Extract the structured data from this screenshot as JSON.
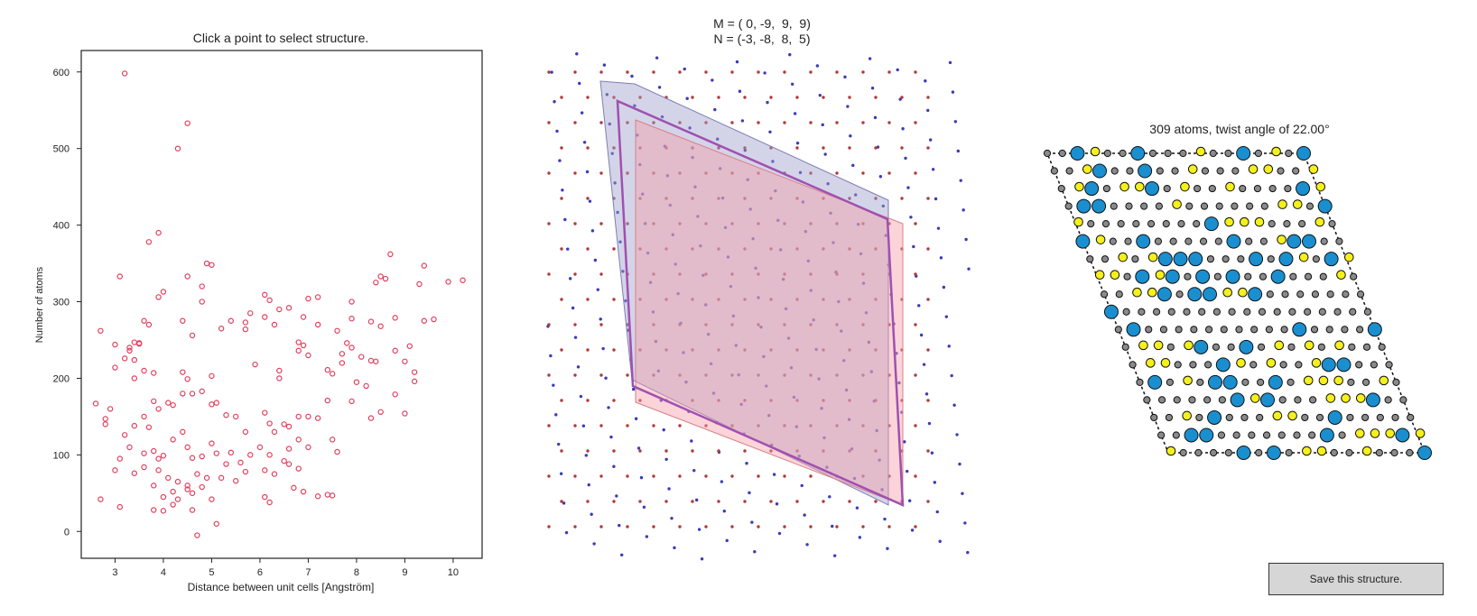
{
  "scatter": {
    "title": "Click a point to select structure.",
    "xlabel": "Distance between unit cells [Angström]",
    "ylabel": "Number of atoms",
    "x_ticks": [
      "3",
      "4",
      "5",
      "6",
      "7",
      "8",
      "9",
      "10"
    ],
    "y_ticks": [
      "0",
      "100",
      "200",
      "300",
      "400",
      "500",
      "600"
    ],
    "point_color": "#e0405e"
  },
  "lattice": {
    "line1": "M = ( 0, -9,  9,  9)",
    "line2": "N = (-3, -8,  8,  5)",
    "colors": {
      "lattice_a": "#b03a3a",
      "lattice_b": "#3b3bb8",
      "cell_a": "#f5a0a8",
      "cell_b": "#a0a0cc",
      "outline": "#a050b0"
    }
  },
  "structure": {
    "title": "309 atoms, twist angle of 22.00°",
    "colors": {
      "large_atom": "#1a8fd0",
      "yellow_atom": "#f5f01a",
      "small_atom": "#8a8a8a"
    }
  },
  "save_button": {
    "label": "Save this structure."
  },
  "chart_data": [
    {
      "type": "scatter",
      "title": "Click a point to select structure.",
      "xlabel": "Distance between unit cells [Angström]",
      "ylabel": "Number of atoms",
      "xlim": [
        2.3,
        10.6
      ],
      "ylim": [
        -35,
        628
      ],
      "points": [
        [
          3.2,
          598
        ],
        [
          4.5,
          533
        ],
        [
          4.3,
          500
        ],
        [
          3.9,
          390
        ],
        [
          3.7,
          378
        ],
        [
          4.9,
          350
        ],
        [
          5.0,
          348
        ],
        [
          8.7,
          362
        ],
        [
          9.4,
          347
        ],
        [
          3.1,
          333
        ],
        [
          4.5,
          333
        ],
        [
          4.8,
          320
        ],
        [
          8.5,
          333
        ],
        [
          8.4,
          325
        ],
        [
          8.6,
          330
        ],
        [
          9.3,
          323
        ],
        [
          9.9,
          326
        ],
        [
          10.2,
          328
        ],
        [
          4.0,
          313
        ],
        [
          3.9,
          306
        ],
        [
          4.8,
          300
        ],
        [
          6.1,
          309
        ],
        [
          6.2,
          302
        ],
        [
          7.0,
          304
        ],
        [
          7.2,
          306
        ],
        [
          7.9,
          300
        ],
        [
          9.6,
          277
        ],
        [
          2.7,
          262
        ],
        [
          3.0,
          244
        ],
        [
          3.3,
          240
        ],
        [
          3.5,
          245
        ],
        [
          3.6,
          275
        ],
        [
          3.7,
          270
        ],
        [
          4.4,
          275
        ],
        [
          4.6,
          256
        ],
        [
          5.2,
          265
        ],
        [
          5.4,
          275
        ],
        [
          5.7,
          273
        ],
        [
          5.7,
          264
        ],
        [
          5.8,
          285
        ],
        [
          6.1,
          280
        ],
        [
          6.3,
          270
        ],
        [
          6.4,
          290
        ],
        [
          6.6,
          292
        ],
        [
          6.9,
          280
        ],
        [
          7.2,
          270
        ],
        [
          7.6,
          262
        ],
        [
          7.9,
          278
        ],
        [
          8.3,
          274
        ],
        [
          8.5,
          268
        ],
        [
          8.8,
          279
        ],
        [
          9.1,
          242
        ],
        [
          9.4,
          275
        ],
        [
          3.4,
          247
        ],
        [
          3.5,
          246
        ],
        [
          3.3,
          236
        ],
        [
          3.2,
          226
        ],
        [
          3.4,
          224
        ],
        [
          3.0,
          214
        ],
        [
          3.4,
          200
        ],
        [
          3.6,
          210
        ],
        [
          3.8,
          207
        ],
        [
          4.4,
          208
        ],
        [
          4.5,
          199
        ],
        [
          5.0,
          203
        ],
        [
          5.9,
          218
        ],
        [
          6.4,
          210
        ],
        [
          6.8,
          236
        ],
        [
          6.8,
          247
        ],
        [
          6.9,
          243
        ],
        [
          7.0,
          230
        ],
        [
          7.7,
          232
        ],
        [
          7.8,
          246
        ],
        [
          7.9,
          240
        ],
        [
          8.1,
          228
        ],
        [
          8.3,
          223
        ],
        [
          8.4,
          222
        ],
        [
          8.8,
          236
        ],
        [
          9.0,
          222
        ],
        [
          9.2,
          208
        ],
        [
          9.2,
          196
        ],
        [
          7.4,
          211
        ],
        [
          7.7,
          220
        ],
        [
          7.5,
          206
        ],
        [
          8.0,
          195
        ],
        [
          8.2,
          190
        ],
        [
          6.4,
          200
        ],
        [
          2.6,
          167
        ],
        [
          2.9,
          160
        ],
        [
          2.8,
          147
        ],
        [
          3.2,
          126
        ],
        [
          3.4,
          138
        ],
        [
          3.7,
          136
        ],
        [
          3.6,
          150
        ],
        [
          3.9,
          160
        ],
        [
          3.8,
          170
        ],
        [
          4.1,
          168
        ],
        [
          4.2,
          165
        ],
        [
          4.4,
          180
        ],
        [
          4.6,
          180
        ],
        [
          4.8,
          183
        ],
        [
          5.0,
          166
        ],
        [
          5.1,
          168
        ],
        [
          5.3,
          152
        ],
        [
          5.5,
          150
        ],
        [
          5.7,
          130
        ],
        [
          6.1,
          155
        ],
        [
          6.2,
          141
        ],
        [
          6.3,
          130
        ],
        [
          6.5,
          140
        ],
        [
          6.6,
          137
        ],
        [
          6.8,
          150
        ],
        [
          7.0,
          150
        ],
        [
          7.2,
          148
        ],
        [
          7.4,
          171
        ],
        [
          7.5,
          120
        ],
        [
          7.9,
          170
        ],
        [
          8.3,
          148
        ],
        [
          8.5,
          156
        ],
        [
          8.8,
          179
        ],
        [
          9.0,
          154
        ],
        [
          2.8,
          140
        ],
        [
          3.1,
          95
        ],
        [
          3.3,
          110
        ],
        [
          3.6,
          102
        ],
        [
          3.8,
          105
        ],
        [
          3.9,
          95
        ],
        [
          4.0,
          99
        ],
        [
          4.2,
          120
        ],
        [
          4.4,
          130
        ],
        [
          4.5,
          110
        ],
        [
          4.6,
          96
        ],
        [
          4.8,
          98
        ],
        [
          5.0,
          115
        ],
        [
          5.1,
          102
        ],
        [
          5.3,
          88
        ],
        [
          5.4,
          103
        ],
        [
          5.6,
          90
        ],
        [
          5.8,
          100
        ],
        [
          6.0,
          110
        ],
        [
          6.2,
          100
        ],
        [
          6.5,
          92
        ],
        [
          6.6,
          108
        ],
        [
          6.8,
          82
        ],
        [
          7.0,
          110
        ],
        [
          7.6,
          104
        ],
        [
          6.8,
          120
        ],
        [
          3.0,
          80
        ],
        [
          3.4,
          76
        ],
        [
          3.6,
          84
        ],
        [
          3.9,
          80
        ],
        [
          4.1,
          70
        ],
        [
          4.3,
          65
        ],
        [
          4.5,
          60
        ],
        [
          4.7,
          75
        ],
        [
          4.9,
          70
        ],
        [
          5.2,
          70
        ],
        [
          5.5,
          66
        ],
        [
          5.7,
          78
        ],
        [
          6.1,
          80
        ],
        [
          6.3,
          75
        ],
        [
          6.6,
          88
        ],
        [
          2.7,
          42
        ],
        [
          3.1,
          32
        ],
        [
          3.8,
          60
        ],
        [
          4.0,
          45
        ],
        [
          4.2,
          52
        ],
        [
          4.6,
          50
        ],
        [
          4.8,
          58
        ],
        [
          5.0,
          42
        ],
        [
          6.1,
          45
        ],
        [
          6.2,
          38
        ],
        [
          6.7,
          57
        ],
        [
          6.9,
          52
        ],
        [
          7.2,
          46
        ],
        [
          7.4,
          48
        ],
        [
          7.5,
          47
        ],
        [
          3.8,
          28
        ],
        [
          4.0,
          27
        ],
        [
          4.2,
          35
        ],
        [
          4.6,
          28
        ],
        [
          4.7,
          -5
        ],
        [
          5.1,
          10
        ],
        [
          4.5,
          55
        ],
        [
          4.3,
          42
        ]
      ]
    }
  ]
}
